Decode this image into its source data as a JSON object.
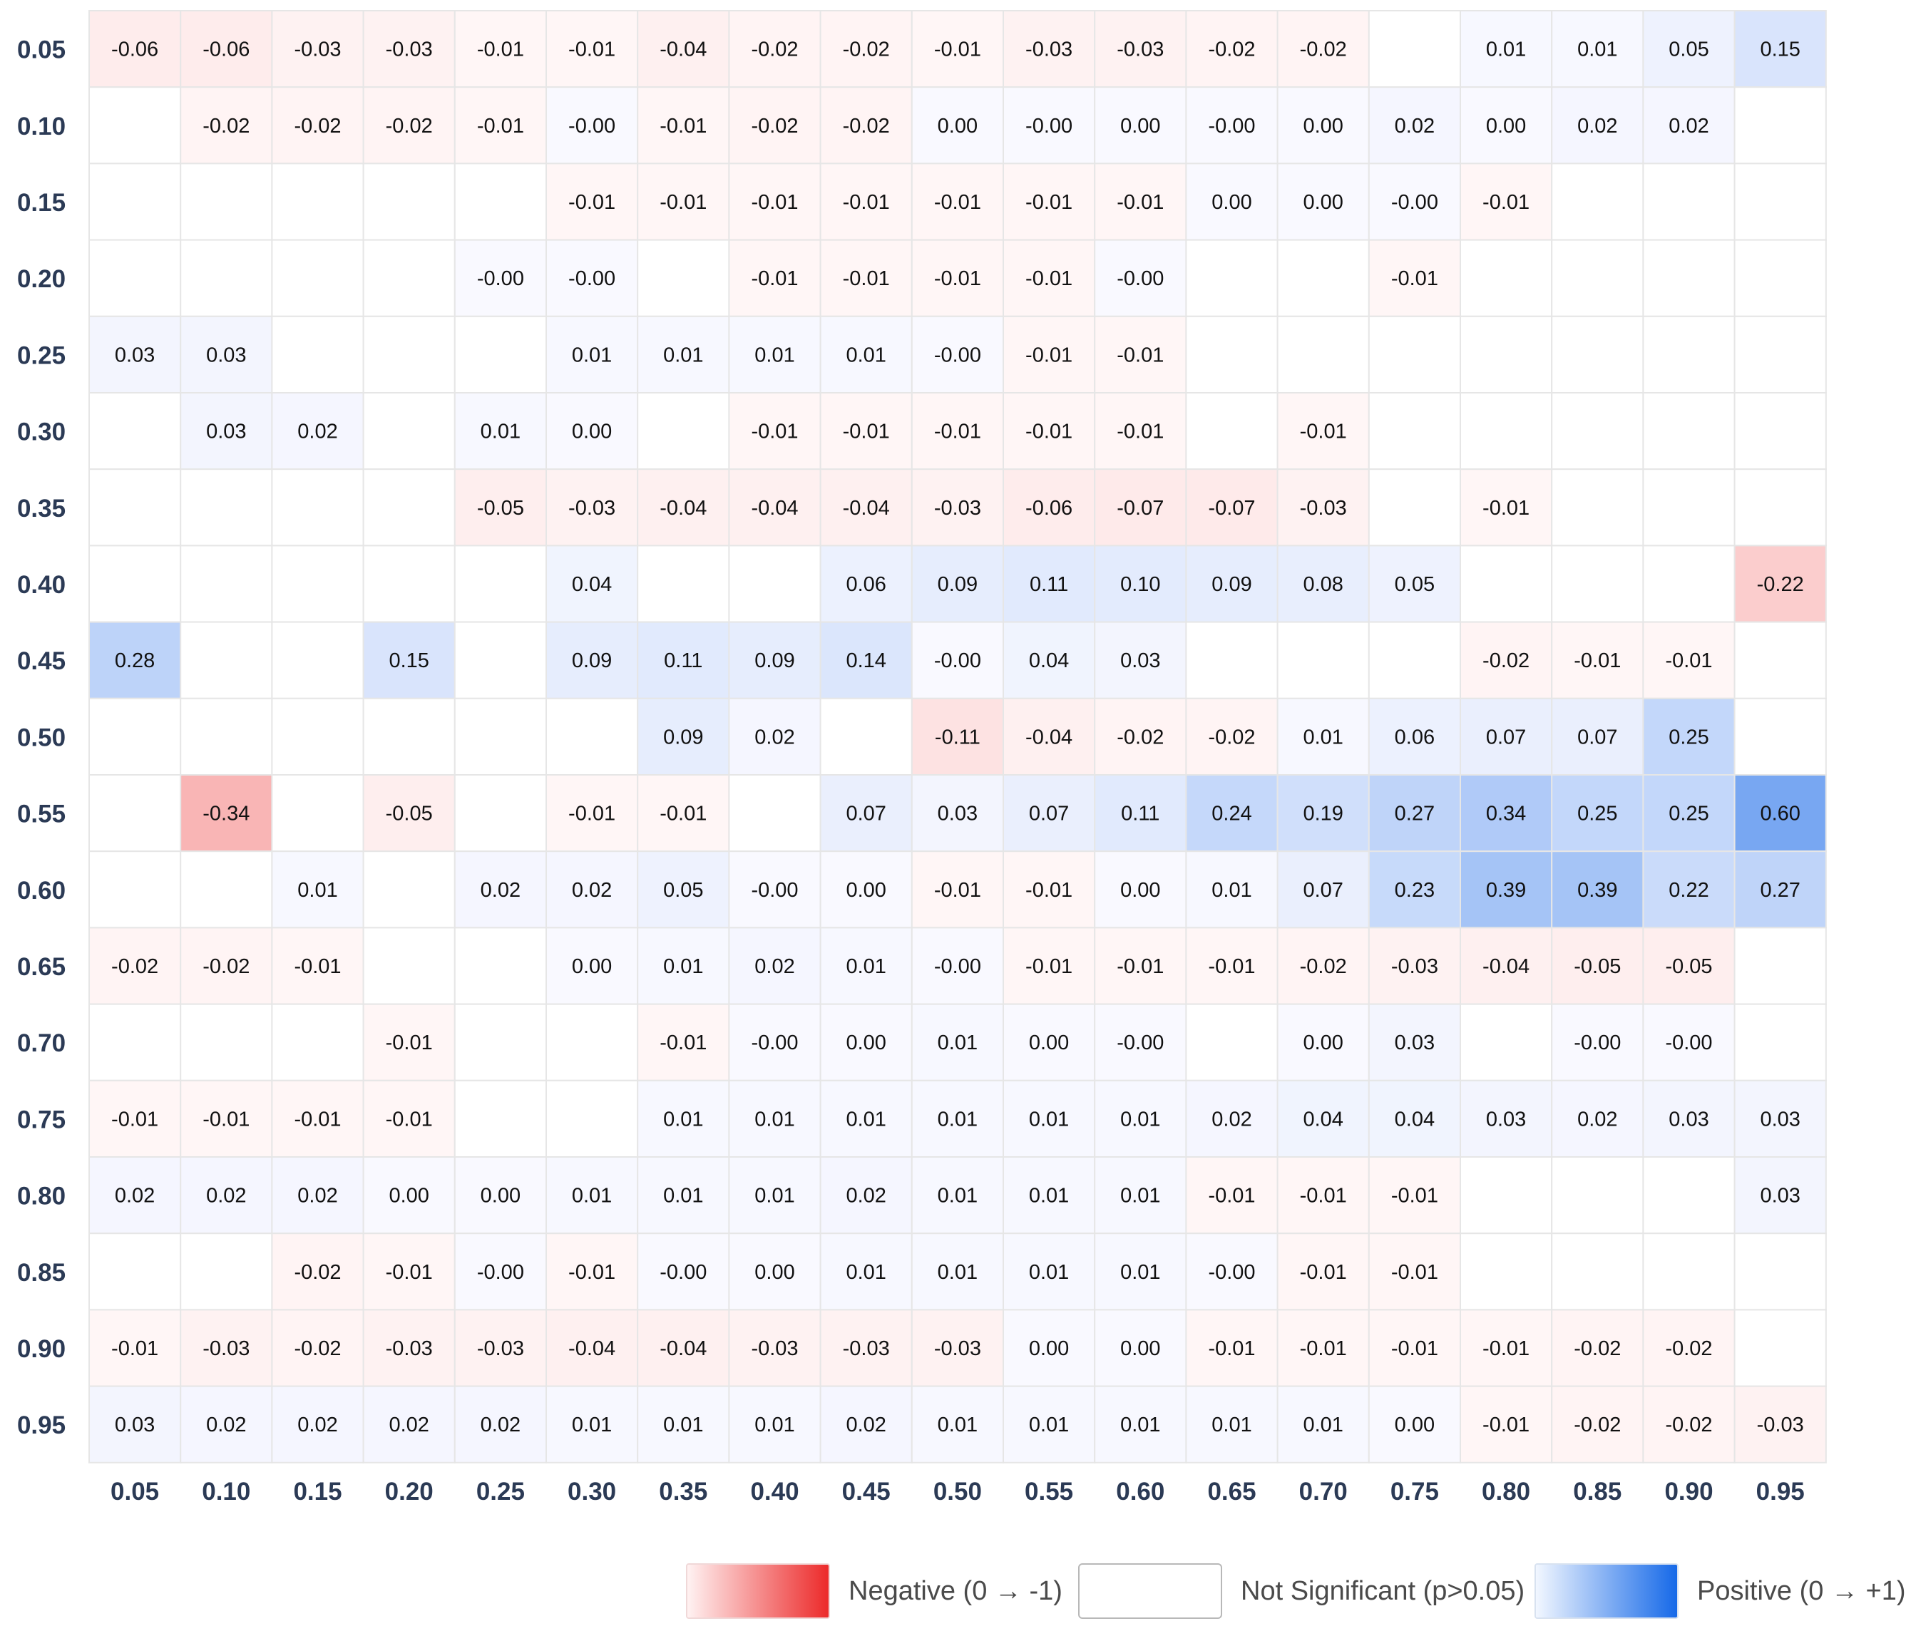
{
  "chart_data": {
    "type": "heatmap",
    "title": "",
    "xlabel": "",
    "ylabel": "",
    "x": [
      "0.05",
      "0.10",
      "0.15",
      "0.20",
      "0.25",
      "0.30",
      "0.35",
      "0.40",
      "0.45",
      "0.50",
      "0.55",
      "0.60",
      "0.65",
      "0.70",
      "0.75",
      "0.80",
      "0.85",
      "0.90",
      "0.95"
    ],
    "y": [
      "0.05",
      "0.10",
      "0.15",
      "0.20",
      "0.25",
      "0.30",
      "0.35",
      "0.40",
      "0.45",
      "0.50",
      "0.55",
      "0.60",
      "0.65",
      "0.70",
      "0.75",
      "0.80",
      "0.85",
      "0.90",
      "0.95"
    ],
    "values": [
      [
        "-0.06",
        "-0.06",
        "-0.03",
        "-0.03",
        "-0.01",
        "-0.01",
        "-0.04",
        "-0.02",
        "-0.02",
        "-0.01",
        "-0.03",
        "-0.03",
        "-0.02",
        "-0.02",
        null,
        "0.01",
        "0.01",
        "0.05",
        "0.15"
      ],
      [
        null,
        "-0.02",
        "-0.02",
        "-0.02",
        "-0.01",
        "-0.00",
        "-0.01",
        "-0.02",
        "-0.02",
        "0.00",
        "-0.00",
        "0.00",
        "-0.00",
        "0.00",
        "0.02",
        "0.00",
        "0.02",
        "0.02",
        null
      ],
      [
        null,
        null,
        null,
        null,
        null,
        "-0.01",
        "-0.01",
        "-0.01",
        "-0.01",
        "-0.01",
        "-0.01",
        "-0.01",
        "0.00",
        "0.00",
        "-0.00",
        "-0.01",
        null,
        null,
        null
      ],
      [
        null,
        null,
        null,
        null,
        "-0.00",
        "-0.00",
        null,
        "-0.01",
        "-0.01",
        "-0.01",
        "-0.01",
        "-0.00",
        null,
        null,
        "-0.01",
        null,
        null,
        null,
        null
      ],
      [
        "0.03",
        "0.03",
        null,
        null,
        null,
        "0.01",
        "0.01",
        "0.01",
        "0.01",
        "-0.00",
        "-0.01",
        "-0.01",
        null,
        null,
        null,
        null,
        null,
        null,
        null
      ],
      [
        null,
        "0.03",
        "0.02",
        null,
        "0.01",
        "0.00",
        null,
        "-0.01",
        "-0.01",
        "-0.01",
        "-0.01",
        "-0.01",
        null,
        "-0.01",
        null,
        null,
        null,
        null,
        null
      ],
      [
        null,
        null,
        null,
        null,
        "-0.05",
        "-0.03",
        "-0.04",
        "-0.04",
        "-0.04",
        "-0.03",
        "-0.06",
        "-0.07",
        "-0.07",
        "-0.03",
        null,
        "-0.01",
        null,
        null,
        null
      ],
      [
        null,
        null,
        null,
        null,
        null,
        "0.04",
        null,
        null,
        "0.06",
        "0.09",
        "0.11",
        "0.10",
        "0.09",
        "0.08",
        "0.05",
        null,
        null,
        null,
        "-0.22"
      ],
      [
        "0.28",
        null,
        null,
        "0.15",
        null,
        "0.09",
        "0.11",
        "0.09",
        "0.14",
        "-0.00",
        "0.04",
        "0.03",
        null,
        null,
        null,
        "-0.02",
        "-0.01",
        "-0.01",
        null
      ],
      [
        null,
        null,
        null,
        null,
        null,
        null,
        "0.09",
        "0.02",
        null,
        "-0.11",
        "-0.04",
        "-0.02",
        "-0.02",
        "0.01",
        "0.06",
        "0.07",
        "0.07",
        "0.25",
        null
      ],
      [
        null,
        "-0.34",
        null,
        "-0.05",
        null,
        "-0.01",
        "-0.01",
        null,
        "0.07",
        "0.03",
        "0.07",
        "0.11",
        "0.24",
        "0.19",
        "0.27",
        "0.34",
        "0.25",
        "0.25",
        "0.60"
      ],
      [
        null,
        null,
        "0.01",
        null,
        "0.02",
        "0.02",
        "0.05",
        "-0.00",
        "0.00",
        "-0.01",
        "-0.01",
        "0.00",
        "0.01",
        "0.07",
        "0.23",
        "0.39",
        "0.39",
        "0.22",
        "0.27"
      ],
      [
        "-0.02",
        "-0.02",
        "-0.01",
        null,
        null,
        "0.00",
        "0.01",
        "0.02",
        "0.01",
        "-0.00",
        "-0.01",
        "-0.01",
        "-0.01",
        "-0.02",
        "-0.03",
        "-0.04",
        "-0.05",
        "-0.05",
        null
      ],
      [
        null,
        null,
        null,
        "-0.01",
        null,
        null,
        "-0.01",
        "-0.00",
        "0.00",
        "0.01",
        "0.00",
        "-0.00",
        null,
        "0.00",
        "0.03",
        null,
        "-0.00",
        "-0.00",
        null
      ],
      [
        "-0.01",
        "-0.01",
        "-0.01",
        "-0.01",
        null,
        null,
        "0.01",
        "0.01",
        "0.01",
        "0.01",
        "0.01",
        "0.01",
        "0.02",
        "0.04",
        "0.04",
        "0.03",
        "0.02",
        "0.03",
        "0.03"
      ],
      [
        "0.02",
        "0.02",
        "0.02",
        "0.00",
        "0.00",
        "0.01",
        "0.01",
        "0.01",
        "0.02",
        "0.01",
        "0.01",
        "0.01",
        "-0.01",
        "-0.01",
        "-0.01",
        null,
        null,
        null,
        "0.03"
      ],
      [
        null,
        null,
        "-0.02",
        "-0.01",
        "-0.00",
        "-0.01",
        "-0.00",
        "0.00",
        "0.01",
        "0.01",
        "0.01",
        "0.01",
        "-0.00",
        "-0.01",
        "-0.01",
        null,
        null,
        null,
        null
      ],
      [
        "-0.01",
        "-0.03",
        "-0.02",
        "-0.03",
        "-0.03",
        "-0.04",
        "-0.04",
        "-0.03",
        "-0.03",
        "-0.03",
        "0.00",
        "0.00",
        "-0.01",
        "-0.01",
        "-0.01",
        "-0.01",
        "-0.02",
        "-0.02",
        null
      ],
      [
        "0.03",
        "0.02",
        "0.02",
        "0.02",
        "0.02",
        "0.01",
        "0.01",
        "0.01",
        "0.02",
        "0.01",
        "0.01",
        "0.01",
        "0.01",
        "0.01",
        "0.00",
        "-0.01",
        "-0.02",
        "-0.02",
        "-0.03"
      ]
    ],
    "color_scale": {
      "negative": "#ec2a2a",
      "neutral": "#ffffff",
      "positive": "#1669e8",
      "min": -1,
      "max": 1
    },
    "grid": true,
    "legend_position": "bottom-right",
    "legend": [
      {
        "key": "negative",
        "label": "Negative (0 → -1)"
      },
      {
        "key": "not_significant",
        "label": "Not Significant (p>0.05)"
      },
      {
        "key": "positive",
        "label": "Positive (0 → +1)"
      }
    ]
  }
}
